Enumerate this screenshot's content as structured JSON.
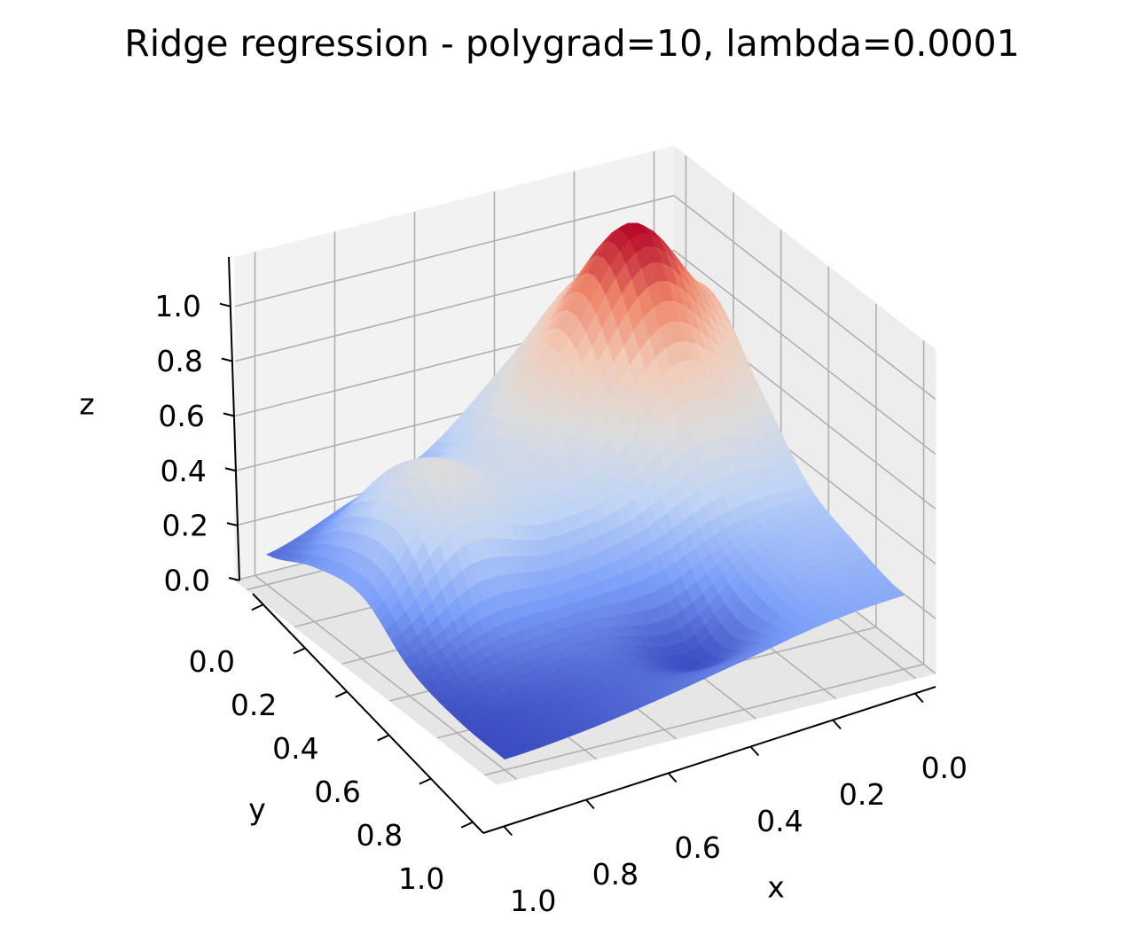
{
  "chart_data": {
    "type": "surface",
    "title": "Ridge regression - polygrad=10, lambda=0.0001",
    "x_label": "x",
    "y_label": "y",
    "z_label": "z",
    "x": [
      0,
      0.2,
      0.4,
      0.6,
      0.8,
      1
    ],
    "y": [
      0,
      0.2,
      0.4,
      0.6,
      0.8,
      1
    ],
    "z": [
      [
        0.77,
        0.85,
        0.59,
        0.34,
        0.22,
        0.11
      ],
      [
        0.83,
        1.15,
        0.78,
        0.47,
        0.49,
        0.2
      ],
      [
        0.61,
        0.79,
        0.54,
        0.47,
        0.57,
        0.23
      ],
      [
        0.4,
        0.38,
        0.27,
        0.23,
        0.22,
        0.1
      ],
      [
        0.32,
        0.28,
        0.05,
        0.12,
        0.09,
        0.05
      ],
      [
        0.27,
        0.24,
        0.18,
        0.12,
        0.07,
        0.04
      ]
    ],
    "xlim": [
      -0.05,
      1.05
    ],
    "ylim": [
      -0.05,
      1.05
    ],
    "zlim": [
      0,
      1.18
    ],
    "xticks": [
      {
        "value": 0,
        "label": "0.0"
      },
      0.2,
      0.4,
      0.6,
      0.8,
      {
        "value": 1,
        "label": "1.0"
      }
    ],
    "yticks": [
      {
        "value": 0,
        "label": "0.0"
      },
      0.2,
      0.4,
      0.6,
      0.8,
      {
        "value": 1,
        "label": "1.0"
      }
    ],
    "zticks": [
      {
        "value": 0,
        "label": "0.0"
      },
      0.2,
      0.4,
      0.6,
      0.8,
      {
        "value": 1,
        "label": "1.0"
      }
    ],
    "grid": true,
    "colormap": [
      "#3b4cc0",
      "#7b9ff9",
      "#c0d4f5",
      "#dddcdc",
      "#f2cbb7",
      "#ee8468",
      "#b40426"
    ]
  }
}
